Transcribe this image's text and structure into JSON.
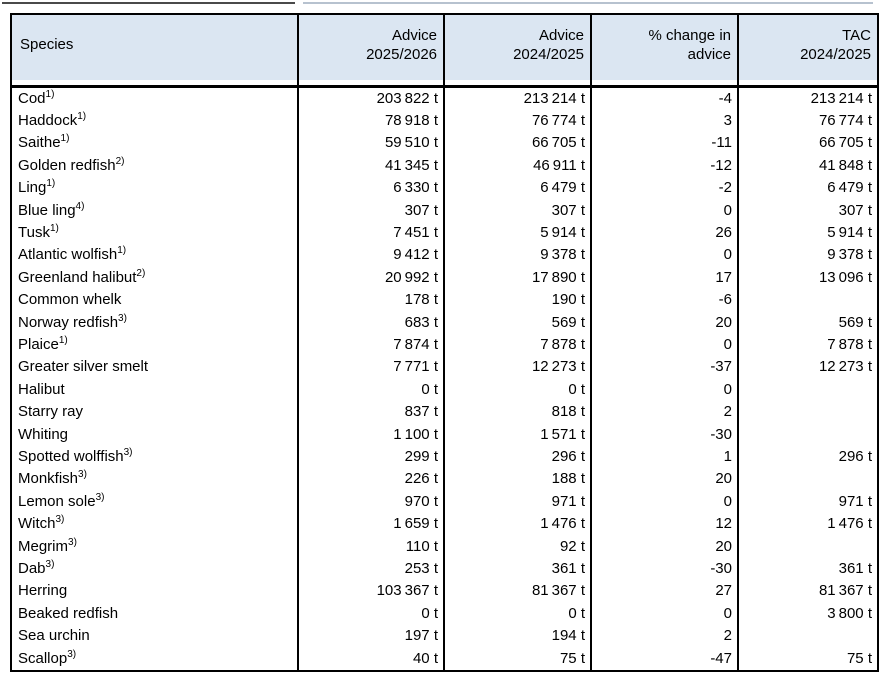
{
  "colors": {
    "header_bg": "#dbe6f2",
    "table_border": "#000000",
    "text": "#000000",
    "top_rule_left": "#4a4a4a",
    "top_rule_right": "#b7c2cf"
  },
  "table": {
    "columns": [
      {
        "label": "Species",
        "align": "left"
      },
      {
        "label": "Advice\n2025/2026",
        "align": "right"
      },
      {
        "label": "Advice\n2024/2025",
        "align": "right"
      },
      {
        "label": "% change in\nadvice",
        "align": "right"
      },
      {
        "label": "TAC\n2024/2025",
        "align": "right"
      }
    ],
    "rows": [
      {
        "species": "Cod",
        "sup": "1)",
        "advice_2025_2026": "203 822 t",
        "advice_2024_2025": "213 214 t",
        "pct_change": "-4",
        "tac_2024_2025": "213 214 t"
      },
      {
        "species": "Haddock",
        "sup": "1)",
        "advice_2025_2026": "78 918 t",
        "advice_2024_2025": "76 774 t",
        "pct_change": "3",
        "tac_2024_2025": "76 774 t"
      },
      {
        "species": "Saithe",
        "sup": "1)",
        "advice_2025_2026": "59 510 t",
        "advice_2024_2025": "66 705 t",
        "pct_change": "-11",
        "tac_2024_2025": "66 705 t"
      },
      {
        "species": "Golden redfish",
        "sup": "2)",
        "advice_2025_2026": "41 345 t",
        "advice_2024_2025": "46 911 t",
        "pct_change": "-12",
        "tac_2024_2025": "41 848 t"
      },
      {
        "species": "Ling",
        "sup": "1)",
        "advice_2025_2026": "6 330 t",
        "advice_2024_2025": "6 479 t",
        "pct_change": "-2",
        "tac_2024_2025": "6 479 t"
      },
      {
        "species": "Blue ling",
        "sup": "4)",
        "advice_2025_2026": "307 t",
        "advice_2024_2025": "307 t",
        "pct_change": "0",
        "tac_2024_2025": "307 t"
      },
      {
        "species": "Tusk",
        "sup": "1)",
        "advice_2025_2026": "7 451 t",
        "advice_2024_2025": "5 914 t",
        "pct_change": "26",
        "tac_2024_2025": "5 914 t"
      },
      {
        "species": "Atlantic wolfish",
        "sup": "1)",
        "advice_2025_2026": "9 412 t",
        "advice_2024_2025": "9 378 t",
        "pct_change": "0",
        "tac_2024_2025": "9 378 t"
      },
      {
        "species": "Greenland halibut",
        "sup": "2)",
        "advice_2025_2026": "20 992 t",
        "advice_2024_2025": "17 890 t",
        "pct_change": "17",
        "tac_2024_2025": "13 096 t"
      },
      {
        "species": "Common whelk",
        "sup": "",
        "advice_2025_2026": "178 t",
        "advice_2024_2025": "190 t",
        "pct_change": "-6",
        "tac_2024_2025": ""
      },
      {
        "species": "Norway redfish",
        "sup": "3)",
        "advice_2025_2026": "683 t",
        "advice_2024_2025": "569 t",
        "pct_change": "20",
        "tac_2024_2025": "569 t"
      },
      {
        "species": "Plaice",
        "sup": "1)",
        "advice_2025_2026": "7 874 t",
        "advice_2024_2025": "7 878 t",
        "pct_change": "0",
        "tac_2024_2025": "7 878 t"
      },
      {
        "species": "Greater silver smelt",
        "sup": "",
        "advice_2025_2026": "7 771 t",
        "advice_2024_2025": "12 273 t",
        "pct_change": "-37",
        "tac_2024_2025": "12 273 t"
      },
      {
        "species": "Halibut",
        "sup": "",
        "advice_2025_2026": "0 t",
        "advice_2024_2025": "0 t",
        "pct_change": "0",
        "tac_2024_2025": ""
      },
      {
        "species": "Starry ray",
        "sup": "",
        "advice_2025_2026": "837 t",
        "advice_2024_2025": "818 t",
        "pct_change": "2",
        "tac_2024_2025": ""
      },
      {
        "species": "Whiting",
        "sup": "",
        "advice_2025_2026": "1 100 t",
        "advice_2024_2025": "1 571 t",
        "pct_change": "-30",
        "tac_2024_2025": ""
      },
      {
        "species": "Spotted wolffish",
        "sup": "3)",
        "advice_2025_2026": "299 t",
        "advice_2024_2025": "296 t",
        "pct_change": "1",
        "tac_2024_2025": "296 t"
      },
      {
        "species": "Monkfish",
        "sup": "3)",
        "advice_2025_2026": "226 t",
        "advice_2024_2025": "188 t",
        "pct_change": "20",
        "tac_2024_2025": ""
      },
      {
        "species": "Lemon sole",
        "sup": "3)",
        "advice_2025_2026": "970 t",
        "advice_2024_2025": "971 t",
        "pct_change": "0",
        "tac_2024_2025": "971 t"
      },
      {
        "species": "Witch",
        "sup": "3)",
        "advice_2025_2026": "1 659 t",
        "advice_2024_2025": "1 476 t",
        "pct_change": "12",
        "tac_2024_2025": "1 476 t"
      },
      {
        "species": "Megrim",
        "sup": "3)",
        "advice_2025_2026": "110 t",
        "advice_2024_2025": "92 t",
        "pct_change": "20",
        "tac_2024_2025": ""
      },
      {
        "species": "Dab",
        "sup": "3)",
        "advice_2025_2026": "253 t",
        "advice_2024_2025": "361 t",
        "pct_change": "-30",
        "tac_2024_2025": "361 t"
      },
      {
        "species": "Herring",
        "sup": "",
        "advice_2025_2026": "103 367 t",
        "advice_2024_2025": "81 367 t",
        "pct_change": "27",
        "tac_2024_2025": "81 367 t"
      },
      {
        "species": "Beaked redfish",
        "sup": "",
        "advice_2025_2026": "0 t",
        "advice_2024_2025": "0 t",
        "pct_change": "0",
        "tac_2024_2025": "3 800 t"
      },
      {
        "species": "Sea urchin",
        "sup": "",
        "advice_2025_2026": "197 t",
        "advice_2024_2025": "194 t",
        "pct_change": "2",
        "tac_2024_2025": ""
      },
      {
        "species": "Scallop",
        "sup": "3)",
        "advice_2025_2026": "40 t",
        "advice_2024_2025": "75 t",
        "pct_change": "-47",
        "tac_2024_2025": "75 t"
      }
    ]
  }
}
